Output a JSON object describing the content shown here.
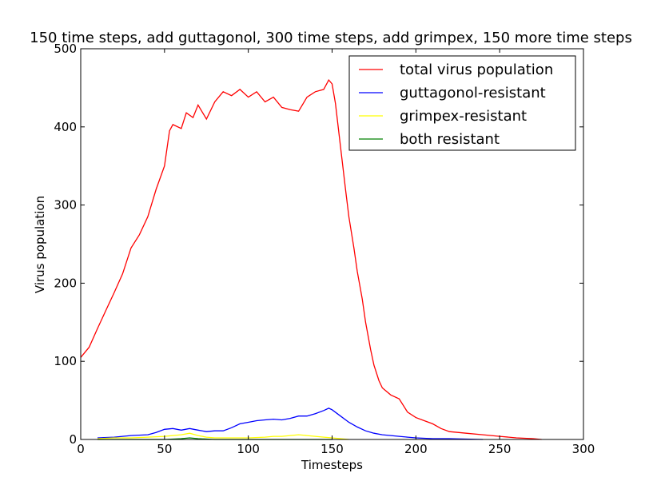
{
  "chart_data": {
    "type": "line",
    "title": "150 time steps, add guttagonol, 300 time steps, add grimpex, 150 more time steps",
    "xlabel": "Timesteps",
    "ylabel": "Virus population",
    "xlim": [
      0,
      300
    ],
    "ylim": [
      0,
      500
    ],
    "xticks": [
      "0",
      "50",
      "100",
      "150",
      "200",
      "250",
      "300"
    ],
    "yticks": [
      "0",
      "100",
      "200",
      "300",
      "400",
      "500"
    ],
    "grid": false,
    "legend_position": "top-right",
    "series": [
      {
        "name": "total virus population",
        "color": "#ff0000",
        "points": [
          [
            0,
            105
          ],
          [
            5,
            118
          ],
          [
            10,
            142
          ],
          [
            15,
            165
          ],
          [
            20,
            188
          ],
          [
            25,
            212
          ],
          [
            30,
            245
          ],
          [
            35,
            262
          ],
          [
            40,
            285
          ],
          [
            45,
            320
          ],
          [
            50,
            350
          ],
          [
            53,
            395
          ],
          [
            55,
            403
          ],
          [
            60,
            398
          ],
          [
            63,
            418
          ],
          [
            67,
            412
          ],
          [
            70,
            428
          ],
          [
            75,
            410
          ],
          [
            80,
            432
          ],
          [
            85,
            445
          ],
          [
            90,
            440
          ],
          [
            95,
            448
          ],
          [
            100,
            438
          ],
          [
            105,
            445
          ],
          [
            110,
            432
          ],
          [
            115,
            438
          ],
          [
            120,
            425
          ],
          [
            125,
            422
          ],
          [
            130,
            420
          ],
          [
            135,
            438
          ],
          [
            140,
            445
          ],
          [
            145,
            448
          ],
          [
            148,
            460
          ],
          [
            150,
            455
          ],
          [
            152,
            430
          ],
          [
            155,
            375
          ],
          [
            158,
            320
          ],
          [
            160,
            285
          ],
          [
            163,
            245
          ],
          [
            165,
            215
          ],
          [
            168,
            180
          ],
          [
            170,
            150
          ],
          [
            173,
            115
          ],
          [
            175,
            95
          ],
          [
            178,
            75
          ],
          [
            180,
            66
          ],
          [
            185,
            57
          ],
          [
            190,
            52
          ],
          [
            195,
            35
          ],
          [
            200,
            28
          ],
          [
            205,
            24
          ],
          [
            210,
            20
          ],
          [
            215,
            14
          ],
          [
            220,
            10
          ],
          [
            225,
            9
          ],
          [
            230,
            8
          ],
          [
            240,
            6
          ],
          [
            250,
            4
          ],
          [
            260,
            2
          ],
          [
            270,
            1
          ],
          [
            275,
            0
          ]
        ]
      },
      {
        "name": "guttagonol-resistant",
        "color": "#0000ff",
        "points": [
          [
            10,
            2
          ],
          [
            20,
            3
          ],
          [
            30,
            5
          ],
          [
            40,
            6
          ],
          [
            45,
            9
          ],
          [
            50,
            13
          ],
          [
            55,
            14
          ],
          [
            60,
            12
          ],
          [
            65,
            14
          ],
          [
            70,
            12
          ],
          [
            75,
            10
          ],
          [
            80,
            11
          ],
          [
            85,
            11
          ],
          [
            90,
            15
          ],
          [
            95,
            20
          ],
          [
            100,
            22
          ],
          [
            105,
            24
          ],
          [
            110,
            25
          ],
          [
            115,
            26
          ],
          [
            120,
            25
          ],
          [
            125,
            27
          ],
          [
            130,
            30
          ],
          [
            135,
            30
          ],
          [
            140,
            33
          ],
          [
            145,
            37
          ],
          [
            148,
            40
          ],
          [
            150,
            38
          ],
          [
            155,
            30
          ],
          [
            160,
            22
          ],
          [
            165,
            16
          ],
          [
            170,
            11
          ],
          [
            175,
            8
          ],
          [
            180,
            6
          ],
          [
            185,
            5
          ],
          [
            190,
            4
          ],
          [
            195,
            3
          ],
          [
            200,
            2
          ],
          [
            210,
            1
          ],
          [
            220,
            1
          ],
          [
            240,
            0
          ]
        ]
      },
      {
        "name": "grimpex-resistant",
        "color": "#ffff00",
        "points": [
          [
            10,
            1
          ],
          [
            20,
            2
          ],
          [
            30,
            2
          ],
          [
            40,
            3
          ],
          [
            50,
            4
          ],
          [
            55,
            5
          ],
          [
            60,
            6
          ],
          [
            65,
            8
          ],
          [
            70,
            5
          ],
          [
            75,
            3
          ],
          [
            80,
            2
          ],
          [
            90,
            2
          ],
          [
            100,
            2
          ],
          [
            110,
            3
          ],
          [
            115,
            4
          ],
          [
            120,
            4
          ],
          [
            125,
            5
          ],
          [
            130,
            6
          ],
          [
            135,
            5
          ],
          [
            140,
            4
          ],
          [
            145,
            3
          ],
          [
            150,
            2
          ],
          [
            155,
            1
          ],
          [
            160,
            0
          ]
        ]
      },
      {
        "name": "both resistant",
        "color": "#008000",
        "points": [
          [
            10,
            0
          ],
          [
            50,
            0
          ],
          [
            60,
            1
          ],
          [
            65,
            2
          ],
          [
            70,
            1
          ],
          [
            80,
            0
          ],
          [
            150,
            0
          ]
        ]
      }
    ]
  }
}
